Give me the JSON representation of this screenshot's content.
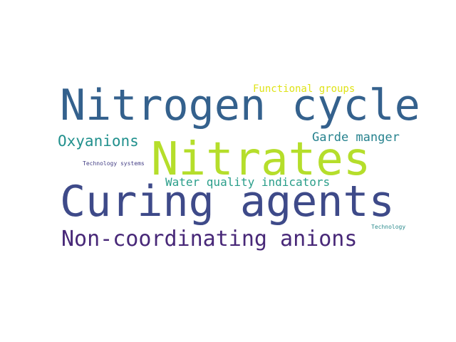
{
  "word_cloud": {
    "background": "#ffffff",
    "words": [
      {
        "id": "nitrogen-cycle",
        "text": "Nitrogen cycle",
        "color": "#34618d"
      },
      {
        "id": "nitrates",
        "text": "Nitrates",
        "color": "#b5de2b"
      },
      {
        "id": "curing-agents",
        "text": "Curing agents",
        "color": "#3e4a89"
      },
      {
        "id": "non-coordinating-anions",
        "text": "Non-coordinating anions",
        "color": "#482878"
      },
      {
        "id": "oxyanions",
        "text": "Oxyanions",
        "color": "#21908d"
      },
      {
        "id": "garde-manger",
        "text": "Garde manger",
        "color": "#26828e"
      },
      {
        "id": "water-quality-indicators",
        "text": "Water quality indicators",
        "color": "#2a9e8a"
      },
      {
        "id": "functional-groups",
        "text": "Functional groups",
        "color": "#dfe318"
      },
      {
        "id": "technology-systems",
        "text": "Technology systems",
        "color": "#433e85"
      },
      {
        "id": "technology",
        "text": "Technology",
        "color": "#2c8b8d"
      }
    ]
  }
}
